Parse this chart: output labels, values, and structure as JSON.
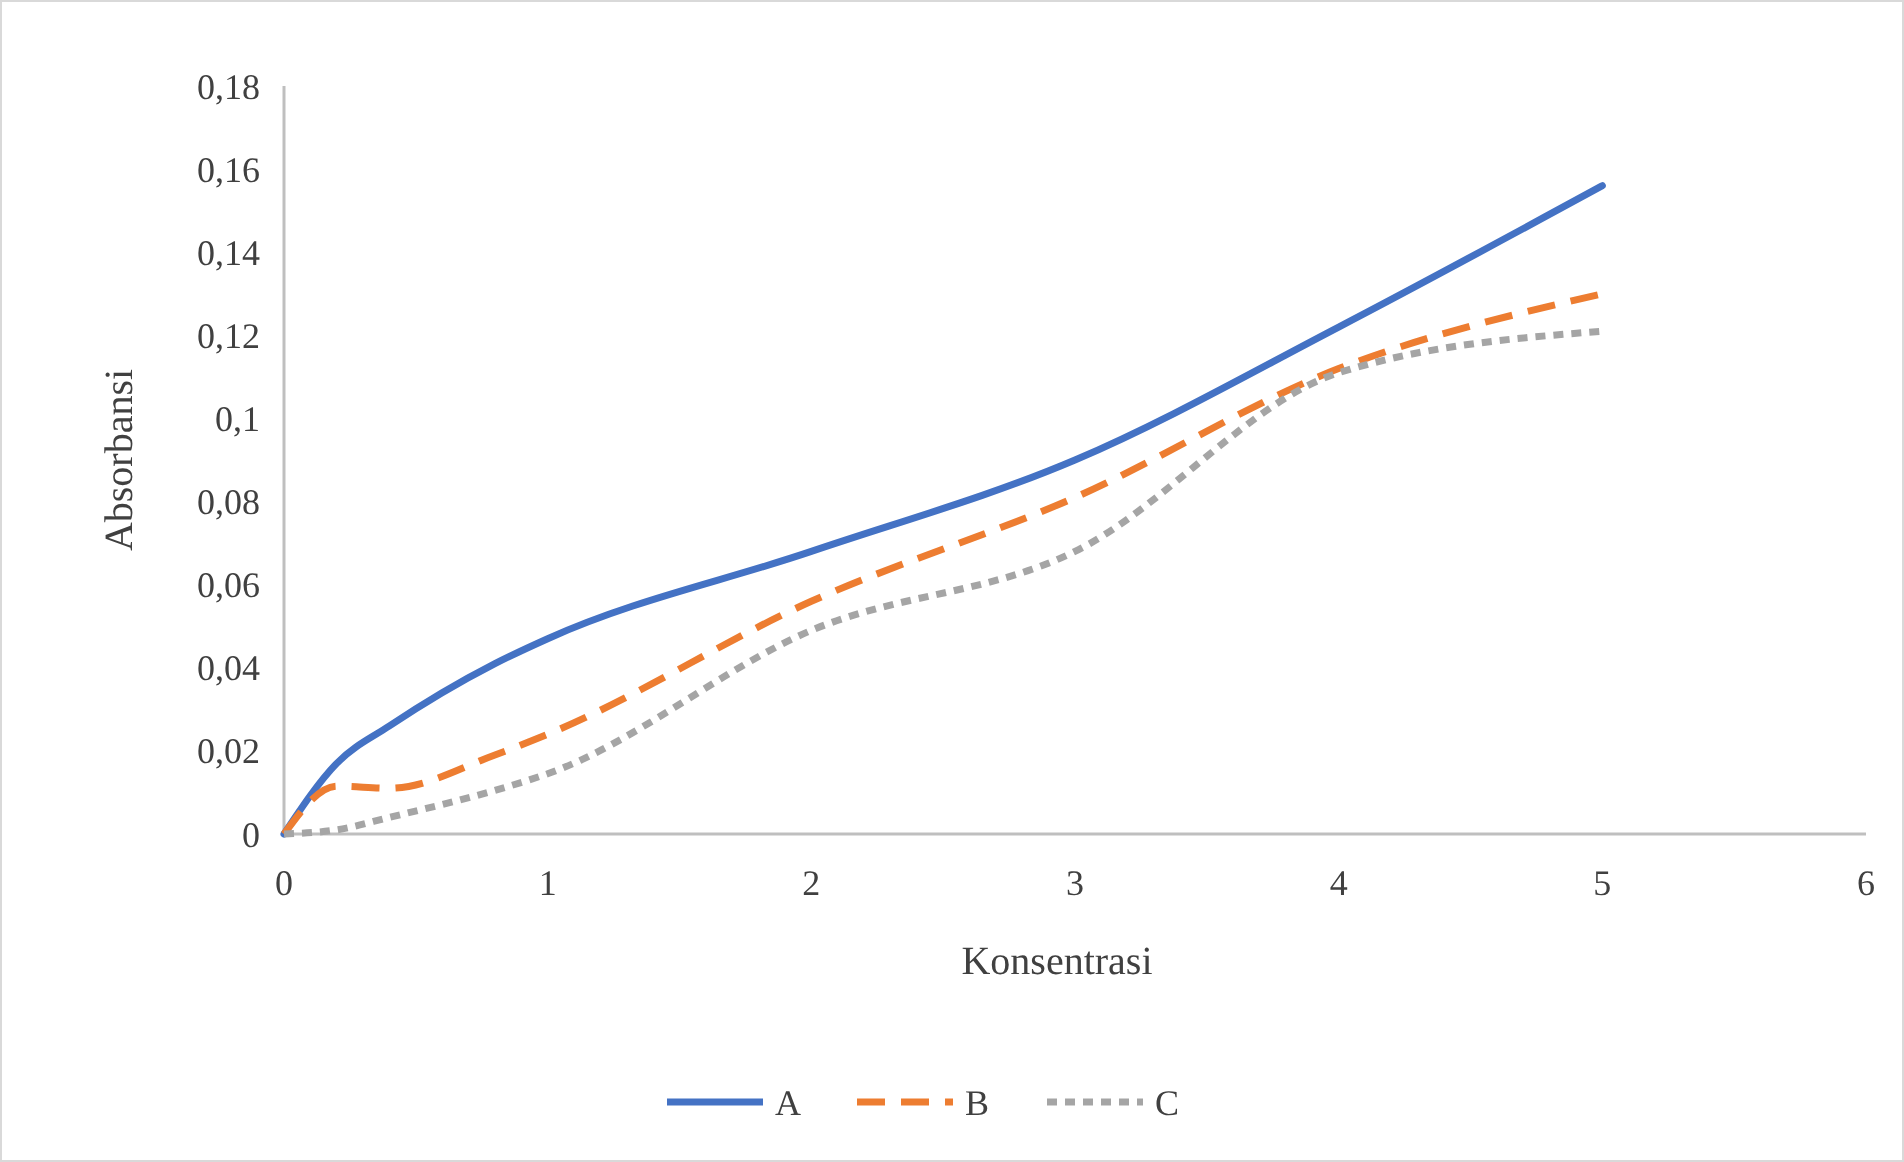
{
  "chart_data": {
    "type": "line",
    "xlabel": "Konsentrasi",
    "ylabel": "Absorbansi",
    "xlim": [
      0,
      6
    ],
    "xticks": [
      0,
      1,
      2,
      3,
      4,
      5,
      6
    ],
    "ylim": [
      0,
      0.18
    ],
    "yticks": [
      0,
      {
        "value": 0.02,
        "label": "0,02"
      },
      {
        "value": 0.04,
        "label": "0,04"
      },
      {
        "value": 0.06,
        "label": "0,06"
      },
      {
        "value": 0.08,
        "label": "0,08"
      },
      {
        "value": 0.1,
        "label": "0,1"
      },
      {
        "value": 0.12,
        "label": "0,12"
      },
      {
        "value": 0.14,
        "label": "0,14"
      },
      {
        "value": 0.16,
        "label": "0,16"
      },
      {
        "value": 0.18,
        "label": "0,18"
      }
    ],
    "x": [
      0,
      0.2,
      0.4,
      0.8,
      1,
      2,
      3,
      4,
      5
    ],
    "series": [
      {
        "name": "A",
        "color": "#4472c4",
        "line_style": "solid",
        "values": [
          0,
          0.017,
          0.026,
          0.041,
          0.047,
          0.068,
          0.09,
          0.122,
          0.156
        ]
      },
      {
        "name": "B",
        "color": "#ed7d31",
        "line_style": "dashed",
        "values": [
          0,
          0.0115,
          0.011,
          0.019,
          0.024,
          0.056,
          0.081,
          0.112,
          0.13
        ]
      },
      {
        "name": "C",
        "color": "#a5a5a5",
        "line_style": "dotted",
        "values": [
          0,
          0.001,
          0.004,
          0.0105,
          0.0145,
          0.049,
          0.068,
          0.111,
          0.121
        ]
      }
    ],
    "grid": false,
    "legend": "bottom",
    "marker": "none"
  }
}
